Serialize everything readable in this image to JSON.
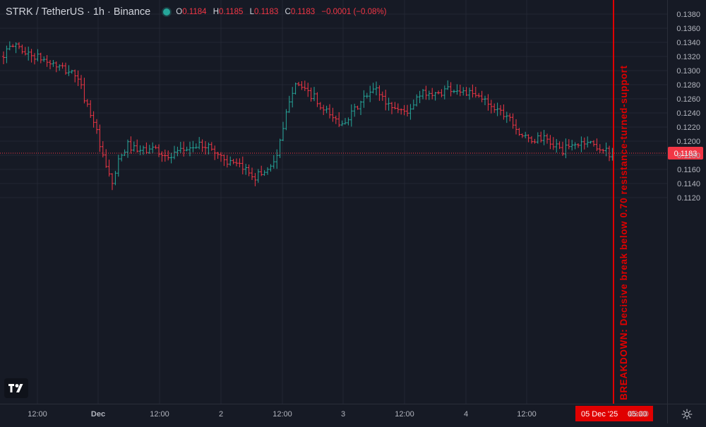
{
  "header": {
    "symbol": "STRK / TetherUS · 1h · Binance",
    "ohlc": [
      {
        "label": "O",
        "value": "0.1184"
      },
      {
        "label": "H",
        "value": "0.1185"
      },
      {
        "label": "L",
        "value": "0.1183"
      },
      {
        "label": "C",
        "value": "0.1183"
      }
    ],
    "change": "−0.0001 (−0.08%)"
  },
  "colors": {
    "background": "#161a25",
    "up": "#26a69a",
    "down": "#f23645",
    "grid": "#232733",
    "text": "#b2b5be",
    "annotation": "#e00000"
  },
  "icons": {
    "logo": "tradingview-logo-icon",
    "settings": "gear-icon",
    "status": "market-status-dot-icon"
  },
  "chart_data": {
    "type": "ohlc-bar",
    "x_labels": [
      "12:00",
      "Dec",
      "12:00",
      "2",
      "12:00",
      "3",
      "12:00",
      "4",
      "12:00",
      "05:00"
    ],
    "y_ticks": [
      "0.1380",
      "0.1360",
      "0.1340",
      "0.1320",
      "0.1300",
      "0.1280",
      "0.1260",
      "0.1240",
      "0.1220",
      "0.1200",
      "0.1180",
      "0.1160",
      "0.1140",
      "0.1120"
    ],
    "ylim": [
      0.1112,
      0.139
    ],
    "grid": true,
    "current_price": "0.1183",
    "current_price_value": 0.1183,
    "crosshair_time_label": "05 Dec '25",
    "annotation": "BREAKDOWN: Decisive break below 0.70 resistance-turned-support",
    "path": [
      {
        "t": 0,
        "p": 0.132
      },
      {
        "t": 5,
        "p": 0.1338
      },
      {
        "t": 8,
        "p": 0.1325
      },
      {
        "t": 14,
        "p": 0.1315
      },
      {
        "t": 20,
        "p": 0.1302
      },
      {
        "t": 24,
        "p": 0.1295
      },
      {
        "t": 26,
        "p": 0.1275
      },
      {
        "t": 28,
        "p": 0.125
      },
      {
        "t": 30,
        "p": 0.123
      },
      {
        "t": 33,
        "p": 0.1175
      },
      {
        "t": 35,
        "p": 0.115
      },
      {
        "t": 36,
        "p": 0.114
      },
      {
        "t": 38,
        "p": 0.117
      },
      {
        "t": 41,
        "p": 0.1195
      },
      {
        "t": 44,
        "p": 0.1185
      },
      {
        "t": 50,
        "p": 0.119
      },
      {
        "t": 54,
        "p": 0.1175
      },
      {
        "t": 60,
        "p": 0.119
      },
      {
        "t": 66,
        "p": 0.1195
      },
      {
        "t": 70,
        "p": 0.1182
      },
      {
        "t": 74,
        "p": 0.1168
      },
      {
        "t": 79,
        "p": 0.116
      },
      {
        "t": 82,
        "p": 0.115
      },
      {
        "t": 86,
        "p": 0.116
      },
      {
        "t": 89,
        "p": 0.118
      },
      {
        "t": 91,
        "p": 0.1215
      },
      {
        "t": 93,
        "p": 0.126
      },
      {
        "t": 95,
        "p": 0.1285
      },
      {
        "t": 98,
        "p": 0.127
      },
      {
        "t": 101,
        "p": 0.1262
      },
      {
        "t": 103,
        "p": 0.1245
      },
      {
        "t": 106,
        "p": 0.1238
      },
      {
        "t": 109,
        "p": 0.1225
      },
      {
        "t": 113,
        "p": 0.1238
      },
      {
        "t": 117,
        "p": 0.126
      },
      {
        "t": 121,
        "p": 0.1275
      },
      {
        "t": 124,
        "p": 0.1255
      },
      {
        "t": 128,
        "p": 0.1245
      },
      {
        "t": 132,
        "p": 0.1242
      },
      {
        "t": 134,
        "p": 0.126
      },
      {
        "t": 137,
        "p": 0.127
      },
      {
        "t": 140,
        "p": 0.1265
      },
      {
        "t": 144,
        "p": 0.1275
      },
      {
        "t": 148,
        "p": 0.1272
      },
      {
        "t": 152,
        "p": 0.1265
      },
      {
        "t": 156,
        "p": 0.1258
      },
      {
        "t": 160,
        "p": 0.1245
      },
      {
        "t": 164,
        "p": 0.1235
      },
      {
        "t": 167,
        "p": 0.1212
      },
      {
        "t": 170,
        "p": 0.12
      },
      {
        "t": 174,
        "p": 0.1205
      },
      {
        "t": 178,
        "p": 0.1195
      },
      {
        "t": 181,
        "p": 0.1187
      },
      {
        "t": 185,
        "p": 0.1195
      },
      {
        "t": 189,
        "p": 0.12
      },
      {
        "t": 193,
        "p": 0.119
      },
      {
        "t": 196,
        "p": 0.1183
      }
    ]
  }
}
